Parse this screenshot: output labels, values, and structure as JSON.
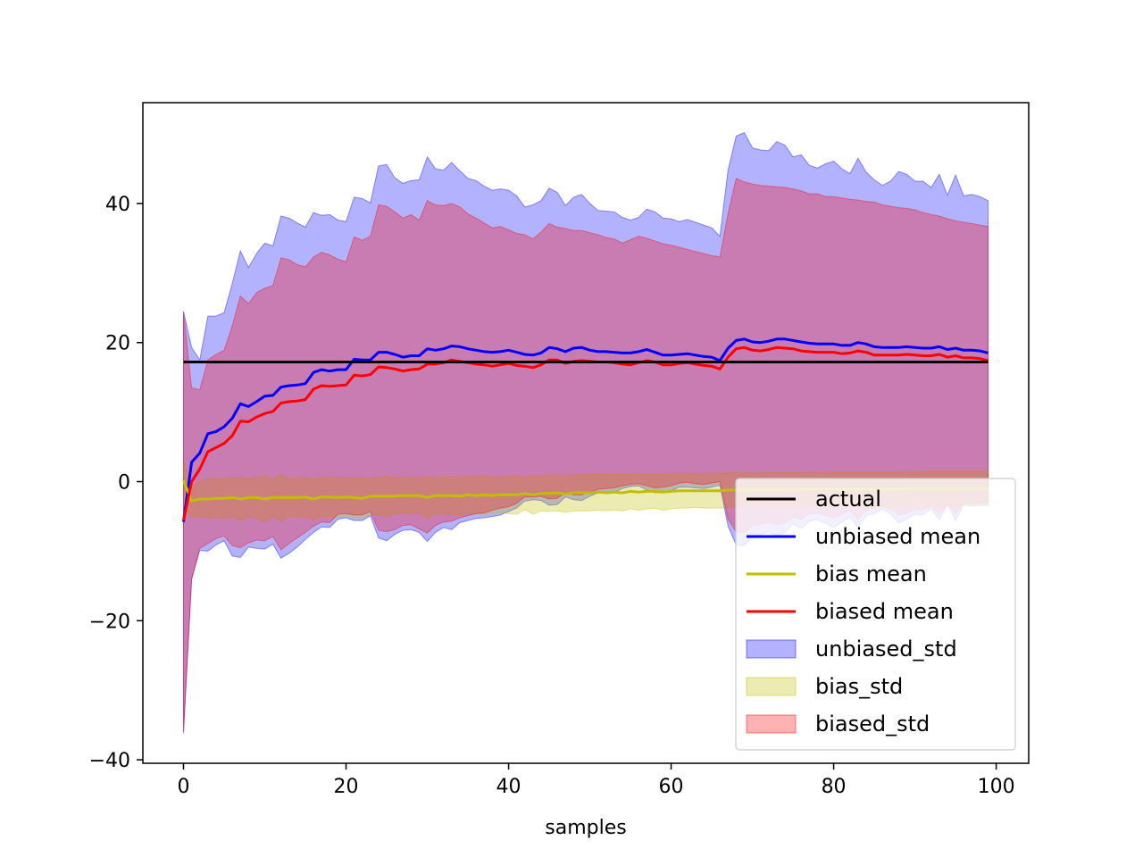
{
  "chart_data": {
    "type": "line",
    "title": "",
    "xlabel": "samples",
    "ylabel": "",
    "xlim": [
      -5,
      104
    ],
    "ylim": [
      -40.5,
      54.5
    ],
    "xticks": [
      0,
      20,
      40,
      60,
      80,
      100
    ],
    "yticks": [
      -40,
      -20,
      0,
      20,
      40
    ],
    "xtick_labels": [
      "0",
      "20",
      "40",
      "60",
      "80",
      "100"
    ],
    "ytick_labels": [
      "−40",
      "−20",
      "0",
      "20",
      "40"
    ],
    "grid": false,
    "legend_position": "lower-right",
    "x": [
      0,
      1,
      2,
      3,
      4,
      5,
      6,
      7,
      8,
      9,
      10,
      11,
      12,
      13,
      14,
      15,
      16,
      17,
      18,
      19,
      20,
      21,
      22,
      23,
      24,
      25,
      26,
      27,
      28,
      29,
      30,
      31,
      32,
      33,
      34,
      35,
      36,
      37,
      38,
      39,
      40,
      41,
      42,
      43,
      44,
      45,
      46,
      47,
      48,
      49,
      50,
      51,
      52,
      53,
      54,
      55,
      56,
      57,
      58,
      59,
      60,
      61,
      62,
      63,
      64,
      65,
      66,
      67,
      68,
      69,
      70,
      71,
      72,
      73,
      74,
      75,
      76,
      77,
      78,
      79,
      80,
      81,
      82,
      83,
      84,
      85,
      86,
      87,
      88,
      89,
      90,
      91,
      92,
      93,
      94,
      95,
      96,
      97,
      98,
      99
    ],
    "series": [
      {
        "name": "actual",
        "kind": "line",
        "color": "#000000",
        "values": [
          17.2,
          17.2,
          17.2,
          17.2,
          17.2,
          17.2,
          17.2,
          17.2,
          17.2,
          17.2,
          17.2,
          17.2,
          17.2,
          17.2,
          17.2,
          17.2,
          17.2,
          17.2,
          17.2,
          17.2,
          17.2,
          17.2,
          17.2,
          17.2,
          17.2,
          17.2,
          17.2,
          17.2,
          17.2,
          17.2,
          17.2,
          17.2,
          17.2,
          17.2,
          17.2,
          17.2,
          17.2,
          17.2,
          17.2,
          17.2,
          17.2,
          17.2,
          17.2,
          17.2,
          17.2,
          17.2,
          17.2,
          17.2,
          17.2,
          17.2,
          17.2,
          17.2,
          17.2,
          17.2,
          17.2,
          17.2,
          17.2,
          17.2,
          17.2,
          17.2,
          17.2,
          17.2,
          17.2,
          17.2,
          17.2,
          17.2,
          17.2,
          17.2,
          17.2,
          17.2,
          17.2,
          17.2,
          17.2,
          17.2,
          17.2,
          17.2,
          17.2,
          17.2,
          17.2,
          17.2,
          17.2,
          17.2,
          17.2,
          17.2,
          17.2,
          17.2,
          17.2,
          17.2,
          17.2,
          17.2,
          17.2,
          17.2,
          17.2,
          17.2,
          17.2,
          17.2,
          17.2,
          17.2,
          17.2,
          17.2
        ]
      },
      {
        "name": "unbiased mean",
        "kind": "line",
        "color": "#0000ff",
        "values": [
          -5.8,
          2.8,
          4.1,
          6.9,
          7.2,
          7.9,
          9.1,
          11.2,
          10.8,
          11.5,
          12.3,
          12.4,
          13.6,
          13.8,
          13.9,
          14.1,
          15.7,
          16.1,
          15.9,
          16.1,
          16.1,
          17.6,
          17.5,
          17.5,
          18.6,
          18.6,
          18.3,
          17.9,
          18.1,
          18.1,
          19.1,
          18.9,
          19.1,
          19.5,
          19.4,
          19.1,
          18.9,
          18.7,
          18.6,
          18.7,
          18.9,
          18.6,
          18.3,
          18.2,
          18.5,
          19.3,
          19.1,
          18.7,
          19.2,
          19.3,
          18.9,
          18.7,
          18.7,
          18.6,
          18.5,
          18.5,
          18.7,
          19.0,
          18.6,
          18.2,
          18.2,
          18.3,
          18.4,
          18.2,
          18.0,
          17.9,
          17.4,
          19.2,
          20.3,
          20.5,
          20.1,
          20.0,
          20.2,
          20.5,
          20.5,
          20.3,
          20.1,
          19.9,
          19.8,
          19.8,
          19.8,
          19.6,
          19.6,
          20.0,
          19.8,
          19.4,
          19.3,
          19.3,
          19.3,
          19.4,
          19.3,
          19.2,
          19.2,
          19.4,
          19.0,
          19.2,
          18.9,
          18.9,
          18.8,
          18.5
        ]
      },
      {
        "name": "bias mean",
        "kind": "line",
        "color": "#bfbf00",
        "values": [
          0.2,
          -2.8,
          -2.5,
          -2.5,
          -2.4,
          -2.4,
          -2.3,
          -2.5,
          -2.3,
          -2.3,
          -2.5,
          -2.3,
          -2.3,
          -2.3,
          -2.3,
          -2.2,
          -2.5,
          -2.2,
          -2.2,
          -2.3,
          -2.2,
          -2.3,
          -2.4,
          -2.1,
          -2.1,
          -2.1,
          -2.1,
          -2.0,
          -2.0,
          -2.0,
          -2.3,
          -2.0,
          -2.0,
          -2.0,
          -2.1,
          -1.9,
          -2.0,
          -1.9,
          -2.0,
          -1.9,
          -1.9,
          -1.9,
          -1.7,
          -1.9,
          -1.7,
          -1.7,
          -1.6,
          -1.8,
          -1.6,
          -1.6,
          -1.6,
          -1.5,
          -1.6,
          -1.5,
          -1.6,
          -1.4,
          -1.5,
          -1.4,
          -1.4,
          -1.5,
          -1.4,
          -1.3,
          -1.3,
          -1.3,
          -1.3,
          -1.3,
          -1.3,
          -1.2,
          -1.2,
          -1.2,
          -1.2,
          -1.2,
          -1.2,
          -1.2,
          -1.2,
          -1.2,
          -1.1,
          -1.1,
          -1.1,
          -1.1,
          -1.1,
          -1.1,
          -1.1,
          -1.1,
          -1.1,
          -1.1,
          -1.1,
          -1.1,
          -1.1,
          -1.0,
          -1.0,
          -1.0,
          -1.0,
          -1.0,
          -1.0,
          -1.0,
          -1.0,
          -1.0,
          -1.0,
          -1.0
        ]
      },
      {
        "name": "biased mean",
        "kind": "line",
        "color": "#ff0000",
        "values": [
          -5.6,
          0.0,
          1.8,
          4.3,
          4.9,
          5.5,
          6.6,
          8.7,
          8.6,
          9.3,
          9.8,
          10.1,
          11.3,
          11.5,
          11.6,
          11.8,
          13.3,
          13.8,
          13.7,
          13.8,
          13.9,
          15.3,
          15.2,
          15.4,
          16.5,
          16.4,
          16.2,
          15.9,
          16.1,
          16.2,
          16.9,
          16.9,
          17.1,
          17.5,
          17.3,
          17.1,
          16.9,
          16.8,
          16.6,
          16.8,
          17.0,
          16.7,
          16.6,
          16.4,
          16.8,
          17.5,
          17.5,
          17.0,
          17.3,
          17.4,
          17.3,
          17.2,
          17.2,
          17.1,
          16.9,
          16.8,
          17.1,
          17.4,
          17.2,
          16.8,
          16.8,
          17.0,
          17.1,
          16.9,
          16.7,
          16.6,
          16.2,
          17.9,
          19.1,
          19.3,
          18.9,
          18.8,
          19.0,
          19.3,
          19.2,
          19.1,
          18.8,
          18.7,
          18.6,
          18.6,
          18.6,
          18.4,
          18.5,
          18.8,
          18.6,
          18.2,
          18.2,
          18.2,
          18.2,
          18.3,
          18.2,
          18.1,
          18.1,
          18.3,
          17.9,
          18.1,
          17.8,
          17.8,
          17.7,
          17.4
        ]
      }
    ],
    "bands": [
      {
        "name": "unbiased_std",
        "color": "#0000ff",
        "opacity": 0.3,
        "upper": [
          24.5,
          19.3,
          17.5,
          23.8,
          23.8,
          24.3,
          28.5,
          33.2,
          30.8,
          32.8,
          34.3,
          33.9,
          38.2,
          37.9,
          37.2,
          36.6,
          38.7,
          38.3,
          38.4,
          37.6,
          37.4,
          40.9,
          40.7,
          40.1,
          45.4,
          45.6,
          43.7,
          42.9,
          43.3,
          43.4,
          46.7,
          45.0,
          44.8,
          45.9,
          44.7,
          43.6,
          43.3,
          42.5,
          41.9,
          42.1,
          41.9,
          41.1,
          39.5,
          39.8,
          40.4,
          42.2,
          41.6,
          39.7,
          40.9,
          41.3,
          40.0,
          39.0,
          38.9,
          38.8,
          38.0,
          37.6,
          38.0,
          39.2,
          38.8,
          37.9,
          37.8,
          37.4,
          37.7,
          37.3,
          36.9,
          36.5,
          35.3,
          44.8,
          49.7,
          50.2,
          48.0,
          47.7,
          47.6,
          48.9,
          48.4,
          46.7,
          47.0,
          45.5,
          45.1,
          45.7,
          46.1,
          45.0,
          44.3,
          46.5,
          44.5,
          43.4,
          42.6,
          43.2,
          44.6,
          44.2,
          43.2,
          43.2,
          42.3,
          44.2,
          41.2,
          44.1,
          41.1,
          41.3,
          41.0,
          40.4
        ],
        "lower": [
          -36.0,
          -14.0,
          -9.9,
          -10.0,
          -9.1,
          -8.5,
          -10.7,
          -10.9,
          -9.4,
          -9.6,
          -9.7,
          -9.0,
          -11.0,
          -10.3,
          -9.4,
          -8.3,
          -7.3,
          -6.5,
          -6.6,
          -5.4,
          -5.2,
          -5.6,
          -5.6,
          -4.9,
          -8.1,
          -8.5,
          -7.6,
          -7.0,
          -6.9,
          -7.3,
          -8.6,
          -7.3,
          -6.6,
          -6.9,
          -5.9,
          -5.6,
          -5.3,
          -5.2,
          -5.0,
          -4.8,
          -4.3,
          -3.8,
          -2.8,
          -2.6,
          -2.7,
          -3.4,
          -3.3,
          -2.2,
          -2.6,
          -2.7,
          -2.1,
          -1.6,
          -1.6,
          -1.5,
          -1.0,
          -0.7,
          -0.6,
          -1.2,
          -1.6,
          -1.5,
          -1.3,
          -0.8,
          -0.8,
          -0.9,
          -1.0,
          -0.8,
          -0.5,
          -6.4,
          -9.1,
          -9.2,
          -7.9,
          -7.6,
          -7.2,
          -7.9,
          -7.3,
          -6.1,
          -6.7,
          -5.7,
          -5.5,
          -6.0,
          -6.6,
          -5.8,
          -5.1,
          -6.6,
          -4.9,
          -4.6,
          -4.0,
          -4.6,
          -6.0,
          -5.4,
          -4.7,
          -4.8,
          -3.9,
          -5.5,
          -3.3,
          -5.6,
          -3.3,
          -3.5,
          -3.4,
          -3.4
        ]
      },
      {
        "name": "bias_std",
        "color": "#bfbf00",
        "opacity": 0.3,
        "upper": [
          2.8,
          -0.8,
          0.0,
          0.5,
          0.4,
          0.5,
          0.5,
          0.6,
          0.4,
          0.6,
          0.8,
          0.3,
          1.1,
          0.4,
          0.5,
          0.6,
          0.4,
          0.6,
          0.6,
          0.6,
          0.5,
          0.6,
          0.5,
          0.5,
          0.6,
          0.8,
          0.5,
          0.6,
          0.6,
          0.5,
          0.7,
          0.6,
          0.7,
          0.7,
          0.6,
          0.8,
          0.7,
          0.9,
          0.6,
          0.6,
          0.8,
          0.9,
          0.6,
          0.9,
          0.8,
          0.9,
          1.0,
          0.8,
          1.0,
          1.0,
          1.0,
          1.1,
          1.0,
          1.1,
          1.0,
          1.1,
          1.1,
          1.1,
          1.0,
          1.1,
          1.1,
          1.2,
          1.2,
          1.1,
          1.2,
          1.2,
          1.2,
          1.3,
          1.3,
          1.3,
          1.2,
          1.3,
          1.3,
          1.3,
          1.3,
          1.3,
          1.3,
          1.4,
          1.3,
          1.4,
          1.4,
          1.4,
          1.4,
          1.4,
          1.4,
          1.4,
          1.4,
          1.4,
          1.4,
          1.5,
          1.4,
          1.5,
          1.5,
          1.5,
          1.5,
          1.5,
          1.5,
          1.5,
          1.5,
          1.5
        ],
        "lower": [
          -3.5,
          -5.2,
          -5.0,
          -5.3,
          -5.1,
          -5.3,
          -5.0,
          -5.6,
          -5.0,
          -5.2,
          -5.8,
          -4.9,
          -5.7,
          -5.0,
          -5.1,
          -5.0,
          -5.4,
          -5.0,
          -5.0,
          -5.2,
          -4.9,
          -5.2,
          -5.3,
          -4.7,
          -4.8,
          -5.0,
          -4.7,
          -4.6,
          -4.6,
          -4.5,
          -5.3,
          -4.6,
          -4.7,
          -4.7,
          -4.8,
          -4.6,
          -4.7,
          -4.7,
          -4.6,
          -4.4,
          -4.6,
          -4.7,
          -4.0,
          -4.7,
          -4.2,
          -4.3,
          -4.2,
          -4.4,
          -4.2,
          -4.2,
          -4.2,
          -4.1,
          -4.2,
          -4.1,
          -4.2,
          -3.9,
          -4.1,
          -3.9,
          -3.8,
          -4.1,
          -3.9,
          -3.8,
          -3.8,
          -3.7,
          -3.8,
          -3.8,
          -3.8,
          -3.7,
          -3.7,
          -3.7,
          -3.6,
          -3.7,
          -3.7,
          -3.7,
          -3.7,
          -3.7,
          -3.5,
          -3.6,
          -3.5,
          -3.6,
          -3.6,
          -3.6,
          -3.6,
          -3.6,
          -3.6,
          -3.6,
          -3.6,
          -3.6,
          -3.6,
          -3.5,
          -3.4,
          -3.5,
          -3.5,
          -3.5,
          -3.5,
          -3.5,
          -3.5,
          -3.5,
          -3.5,
          -3.5
        ]
      },
      {
        "name": "biased_std",
        "color": "#ff0000",
        "opacity": 0.3,
        "upper": [
          24.4,
          13.5,
          13.2,
          17.5,
          18.3,
          18.9,
          22.4,
          26.7,
          25.6,
          27.2,
          27.8,
          28.2,
          32.2,
          31.9,
          31.2,
          30.9,
          32.3,
          33.0,
          32.6,
          32.0,
          31.6,
          35.2,
          34.7,
          35.3,
          39.8,
          39.6,
          38.8,
          37.9,
          38.4,
          37.6,
          40.4,
          39.8,
          39.7,
          40.0,
          39.5,
          38.5,
          37.9,
          37.2,
          36.5,
          36.7,
          36.2,
          35.7,
          35.5,
          34.9,
          35.9,
          37.1,
          36.6,
          36.4,
          36.1,
          36.1,
          35.8,
          35.5,
          35.1,
          34.9,
          34.3,
          34.8,
          35.3,
          35.0,
          34.6,
          34.2,
          34.0,
          33.7,
          33.4,
          33.1,
          32.8,
          32.5,
          32.3,
          38.5,
          43.6,
          43.1,
          42.8,
          42.6,
          42.5,
          42.4,
          42.3,
          42.1,
          41.8,
          41.4,
          41.4,
          41.0,
          41.0,
          40.8,
          40.6,
          40.5,
          40.3,
          40.2,
          39.8,
          39.6,
          39.4,
          39.3,
          39.1,
          38.7,
          38.4,
          38.2,
          37.8,
          37.5,
          37.3,
          37.1,
          36.9,
          36.7
        ],
        "lower": [
          -36.2,
          -14.1,
          -9.6,
          -8.9,
          -8.2,
          -7.8,
          -9.2,
          -9.5,
          -8.8,
          -8.4,
          -8.5,
          -7.9,
          -9.8,
          -8.9,
          -8.1,
          -7.3,
          -6.4,
          -5.8,
          -5.9,
          -4.7,
          -4.6,
          -4.8,
          -4.8,
          -4.3,
          -7.0,
          -7.2,
          -6.9,
          -6.3,
          -6.2,
          -6.8,
          -7.4,
          -6.3,
          -5.8,
          -5.7,
          -5.2,
          -4.9,
          -4.6,
          -4.5,
          -4.1,
          -3.8,
          -3.6,
          -3.1,
          -2.2,
          -2.2,
          -2.1,
          -2.5,
          -2.4,
          -1.6,
          -1.9,
          -1.9,
          -1.5,
          -1.1,
          -1.0,
          -0.9,
          -0.6,
          -0.4,
          -0.3,
          -0.6,
          -0.9,
          -0.8,
          -0.6,
          -0.2,
          -0.1,
          -0.3,
          -0.4,
          -0.2,
          0.0,
          -5.4,
          -7.2,
          -7.3,
          -6.3,
          -6.1,
          -5.8,
          -6.2,
          -5.9,
          -5.1,
          -5.4,
          -4.6,
          -4.5,
          -4.8,
          -5.2,
          -4.7,
          -4.2,
          -5.3,
          -4.1,
          -3.8,
          -3.5,
          -3.9,
          -4.8,
          -4.5,
          -4.0,
          -4.0,
          -3.5,
          -4.6,
          -3.1,
          -4.6,
          -3.0,
          -3.1,
          -3.0,
          -3.0
        ]
      }
    ],
    "legend": [
      {
        "label": "actual",
        "kind": "line",
        "color": "#000000"
      },
      {
        "label": "unbiased mean",
        "kind": "line",
        "color": "#0000ff"
      },
      {
        "label": "bias mean",
        "kind": "line",
        "color": "#bfbf00"
      },
      {
        "label": "biased mean",
        "kind": "line",
        "color": "#ff0000"
      },
      {
        "label": "unbiased_std",
        "kind": "patch",
        "color": "#0000ff"
      },
      {
        "label": "bias_std",
        "kind": "patch",
        "color": "#bfbf00"
      },
      {
        "label": "biased_std",
        "kind": "patch",
        "color": "#ff0000"
      }
    ]
  }
}
